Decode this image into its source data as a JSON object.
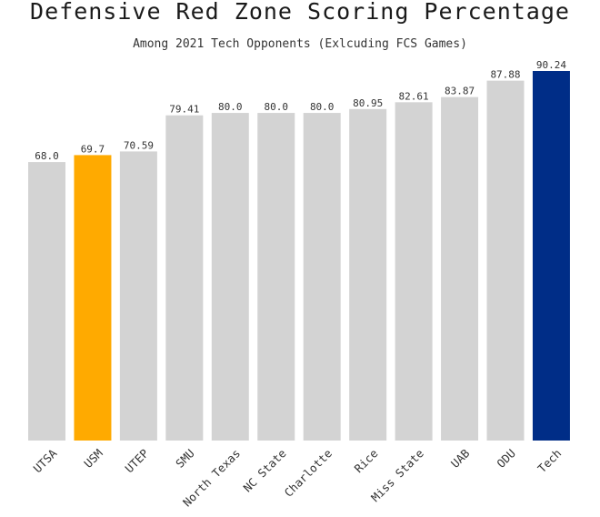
{
  "title": "Defensive Red Zone Scoring Percentage",
  "subtitle": "Among 2021 Tech Opponents (Exlcuding FCS Games)",
  "colors": {
    "default_bar": "#d3d3d3",
    "usm_bar": "#ffaa00",
    "tech_bar": "#002d87",
    "label_text": "#333333"
  },
  "chart_data": {
    "type": "bar",
    "title": "Defensive Red Zone Scoring Percentage",
    "subtitle": "Among 2021 Tech Opponents (Exlcuding FCS Games)",
    "xlabel": "",
    "ylabel": "",
    "ylim": [
      0,
      90.24
    ],
    "grid": false,
    "categories": [
      "UTSA",
      "USM",
      "UTEP",
      "SMU",
      "North Texas",
      "NC State",
      "Charlotte",
      "Rice",
      "Miss State",
      "UAB",
      "ODU",
      "Tech"
    ],
    "values": [
      68.0,
      69.7,
      70.59,
      79.41,
      80.0,
      80.0,
      80.0,
      80.95,
      82.61,
      83.87,
      87.88,
      90.24
    ],
    "value_labels": [
      "68.0",
      "69.7",
      "70.59",
      "79.41",
      "80.0",
      "80.0",
      "80.0",
      "80.95",
      "82.61",
      "83.87",
      "87.88",
      "90.24"
    ],
    "highlight": {
      "USM": "#ffaa00",
      "Tech": "#002d87"
    }
  }
}
